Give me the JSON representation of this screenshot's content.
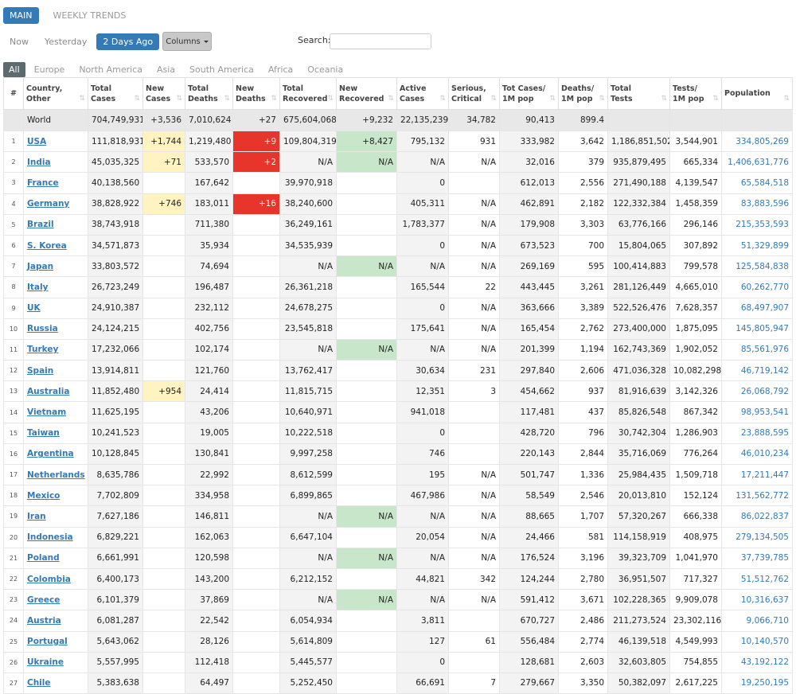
{
  "top_tabs": [
    "MAIN",
    "WEEKLY TRENDS"
  ],
  "day_tabs": [
    "Now",
    "Yesterday",
    "2 Days Ago"
  ],
  "columns_label": "Columns",
  "search_label": "Search:",
  "search_value": "",
  "regions": [
    "All",
    "Europe",
    "North America",
    "Asia",
    "South America",
    "Africa",
    "Oceania"
  ],
  "headers": [
    {
      "line1": "#",
      "line2": ""
    },
    {
      "line1": "Country,",
      "line2": "Other"
    },
    {
      "line1": "Total",
      "line2": "Cases"
    },
    {
      "line1": "New",
      "line2": "Cases"
    },
    {
      "line1": "Total",
      "line2": "Deaths"
    },
    {
      "line1": "New",
      "line2": "Deaths"
    },
    {
      "line1": "Total",
      "line2": "Recovered"
    },
    {
      "line1": "New",
      "line2": "Recovered"
    },
    {
      "line1": "Active",
      "line2": "Cases"
    },
    {
      "line1": "Serious,",
      "line2": "Critical"
    },
    {
      "line1": "Tot Cases/",
      "line2": "1M pop"
    },
    {
      "line1": "Deaths/",
      "line2": "1M pop"
    },
    {
      "line1": "Total",
      "line2": "Tests"
    },
    {
      "line1": "Tests/",
      "line2": "1M pop"
    },
    {
      "line1": "Population",
      "line2": ""
    }
  ],
  "world": [
    "",
    "World",
    "704,749,931",
    "+3,536",
    "7,010,624",
    "+27",
    "675,604,068",
    "+9,232",
    "22,135,239",
    "34,782",
    "90,413",
    "899.4",
    "",
    "",
    ""
  ],
  "rows": [
    [
      "1",
      "USA",
      "111,818,931",
      "+1,744",
      "1,219,480",
      "+9",
      "109,804,319",
      "+8,427",
      "795,132",
      "931",
      "333,982",
      "3,642",
      "1,186,851,502",
      "3,544,901",
      "334,805,269"
    ],
    [
      "2",
      "India",
      "45,035,325",
      "+71",
      "533,570",
      "+2",
      "N/A",
      "N/A",
      "N/A",
      "N/A",
      "32,016",
      "379",
      "935,879,495",
      "665,334",
      "1,406,631,776"
    ],
    [
      "3",
      "France",
      "40,138,560",
      "",
      "167,642",
      "",
      "39,970,918",
      "",
      "0",
      "",
      "612,013",
      "2,556",
      "271,490,188",
      "4,139,547",
      "65,584,518"
    ],
    [
      "4",
      "Germany",
      "38,828,922",
      "+746",
      "183,011",
      "+16",
      "38,240,600",
      "",
      "405,311",
      "N/A",
      "462,891",
      "2,182",
      "122,332,384",
      "1,458,359",
      "83,883,596"
    ],
    [
      "5",
      "Brazil",
      "38,743,918",
      "",
      "711,380",
      "",
      "36,249,161",
      "",
      "1,783,377",
      "N/A",
      "179,908",
      "3,303",
      "63,776,166",
      "296,146",
      "215,353,593"
    ],
    [
      "6",
      "S. Korea",
      "34,571,873",
      "",
      "35,934",
      "",
      "34,535,939",
      "",
      "0",
      "N/A",
      "673,523",
      "700",
      "15,804,065",
      "307,892",
      "51,329,899"
    ],
    [
      "7",
      "Japan",
      "33,803,572",
      "",
      "74,694",
      "",
      "N/A",
      "N/A",
      "N/A",
      "N/A",
      "269,169",
      "595",
      "100,414,883",
      "799,578",
      "125,584,838"
    ],
    [
      "8",
      "Italy",
      "26,723,249",
      "",
      "196,487",
      "",
      "26,361,218",
      "",
      "165,544",
      "22",
      "443,445",
      "3,261",
      "281,126,449",
      "4,665,010",
      "60,262,770"
    ],
    [
      "9",
      "UK",
      "24,910,387",
      "",
      "232,112",
      "",
      "24,678,275",
      "",
      "0",
      "N/A",
      "363,666",
      "3,389",
      "522,526,476",
      "7,628,357",
      "68,497,907"
    ],
    [
      "10",
      "Russia",
      "24,124,215",
      "",
      "402,756",
      "",
      "23,545,818",
      "",
      "175,641",
      "N/A",
      "165,454",
      "2,762",
      "273,400,000",
      "1,875,095",
      "145,805,947"
    ],
    [
      "11",
      "Turkey",
      "17,232,066",
      "",
      "102,174",
      "",
      "N/A",
      "N/A",
      "N/A",
      "N/A",
      "201,399",
      "1,194",
      "162,743,369",
      "1,902,052",
      "85,561,976"
    ],
    [
      "12",
      "Spain",
      "13,914,811",
      "",
      "121,760",
      "",
      "13,762,417",
      "",
      "30,634",
      "231",
      "297,840",
      "2,606",
      "471,036,328",
      "10,082,298",
      "46,719,142"
    ],
    [
      "13",
      "Australia",
      "11,852,480",
      "+954",
      "24,414",
      "",
      "11,815,715",
      "",
      "12,351",
      "3",
      "454,662",
      "937",
      "81,916,639",
      "3,142,326",
      "26,068,792"
    ],
    [
      "14",
      "Vietnam",
      "11,625,195",
      "",
      "43,206",
      "",
      "10,640,971",
      "",
      "941,018",
      "",
      "117,481",
      "437",
      "85,826,548",
      "867,342",
      "98,953,541"
    ],
    [
      "15",
      "Taiwan",
      "10,241,523",
      "",
      "19,005",
      "",
      "10,222,518",
      "",
      "0",
      "",
      "428,720",
      "796",
      "30,742,304",
      "1,286,903",
      "23,888,595"
    ],
    [
      "16",
      "Argentina",
      "10,128,845",
      "",
      "130,841",
      "",
      "9,997,258",
      "",
      "746",
      "",
      "220,143",
      "2,844",
      "35,716,069",
      "776,264",
      "46,010,234"
    ],
    [
      "17",
      "Netherlands",
      "8,635,786",
      "",
      "22,992",
      "",
      "8,612,599",
      "",
      "195",
      "N/A",
      "501,747",
      "1,336",
      "25,984,435",
      "1,509,718",
      "17,211,447"
    ],
    [
      "18",
      "Mexico",
      "7,702,809",
      "",
      "334,958",
      "",
      "6,899,865",
      "",
      "467,986",
      "N/A",
      "58,549",
      "2,546",
      "20,013,810",
      "152,124",
      "131,562,772"
    ],
    [
      "19",
      "Iran",
      "7,627,186",
      "",
      "146,811",
      "",
      "N/A",
      "N/A",
      "N/A",
      "N/A",
      "88,665",
      "1,707",
      "57,320,267",
      "666,338",
      "86,022,837"
    ],
    [
      "20",
      "Indonesia",
      "6,829,221",
      "",
      "162,063",
      "",
      "6,647,104",
      "",
      "20,054",
      "N/A",
      "24,466",
      "581",
      "114,158,919",
      "408,975",
      "279,134,505"
    ],
    [
      "21",
      "Poland",
      "6,661,991",
      "",
      "120,598",
      "",
      "N/A",
      "N/A",
      "N/A",
      "N/A",
      "176,524",
      "3,196",
      "39,323,709",
      "1,041,970",
      "37,739,785"
    ],
    [
      "22",
      "Colombia",
      "6,400,173",
      "",
      "143,200",
      "",
      "6,212,152",
      "",
      "44,821",
      "342",
      "124,244",
      "2,780",
      "36,951,507",
      "717,327",
      "51,512,762"
    ],
    [
      "23",
      "Greece",
      "6,101,379",
      "",
      "37,869",
      "",
      "N/A",
      "N/A",
      "N/A",
      "N/A",
      "591,412",
      "3,671",
      "102,228,365",
      "9,909,078",
      "10,316,637"
    ],
    [
      "24",
      "Austria",
      "6,081,287",
      "",
      "22,542",
      "",
      "6,054,934",
      "",
      "3,811",
      "",
      "670,727",
      "2,486",
      "211,273,524",
      "23,302,116",
      "9,066,710"
    ],
    [
      "25",
      "Portugal",
      "5,643,062",
      "",
      "28,126",
      "",
      "5,614,809",
      "",
      "127",
      "61",
      "556,484",
      "2,774",
      "46,139,518",
      "4,549,993",
      "10,140,570"
    ],
    [
      "26",
      "Ukraine",
      "5,557,995",
      "",
      "112,418",
      "",
      "5,445,577",
      "",
      "0",
      "",
      "128,681",
      "2,603",
      "32,603,805",
      "754,855",
      "43,192,122"
    ],
    [
      "27",
      "Chile",
      "5,383,638",
      "",
      "64,497",
      "",
      "5,252,450",
      "",
      "66,691",
      "7",
      "279,667",
      "3,350",
      "50,382,097",
      "2,617,225",
      "19,250,195"
    ]
  ],
  "colors": {
    "accent": "#337ab7",
    "new_cases_bg": "#fff3c2",
    "new_deaths_bg": "#e7352b",
    "new_recovered_bg": "#c8e6c9"
  }
}
